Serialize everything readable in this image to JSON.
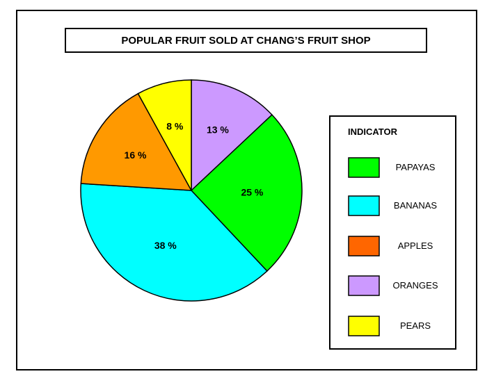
{
  "chart_data": {
    "type": "pie",
    "title": "POPULAR FRUIT SOLD AT CHANG’S FRUIT SHOP",
    "legend_title": "INDICATOR",
    "legend_position": "right",
    "slices": [
      {
        "value": 13,
        "label": "13 %",
        "color": "#cc99ff"
      },
      {
        "value": 25,
        "label": "25 %",
        "color": "#00ff00"
      },
      {
        "value": 38,
        "label": "38 %",
        "color": "#00ffff"
      },
      {
        "value": 16,
        "label": "16 %",
        "color": "#ff9900"
      },
      {
        "value": 8,
        "label": "8 %",
        "color": "#ffff00"
      }
    ],
    "legend": [
      {
        "label": "PAPAYAS",
        "color": "#00ff00"
      },
      {
        "label": "BANANAS",
        "color": "#00ffff"
      },
      {
        "label": "APPLES",
        "color": "#ff6600"
      },
      {
        "label": "ORANGES",
        "color": "#cc99ff"
      },
      {
        "label": "PEARS",
        "color": "#ffff00"
      }
    ]
  }
}
